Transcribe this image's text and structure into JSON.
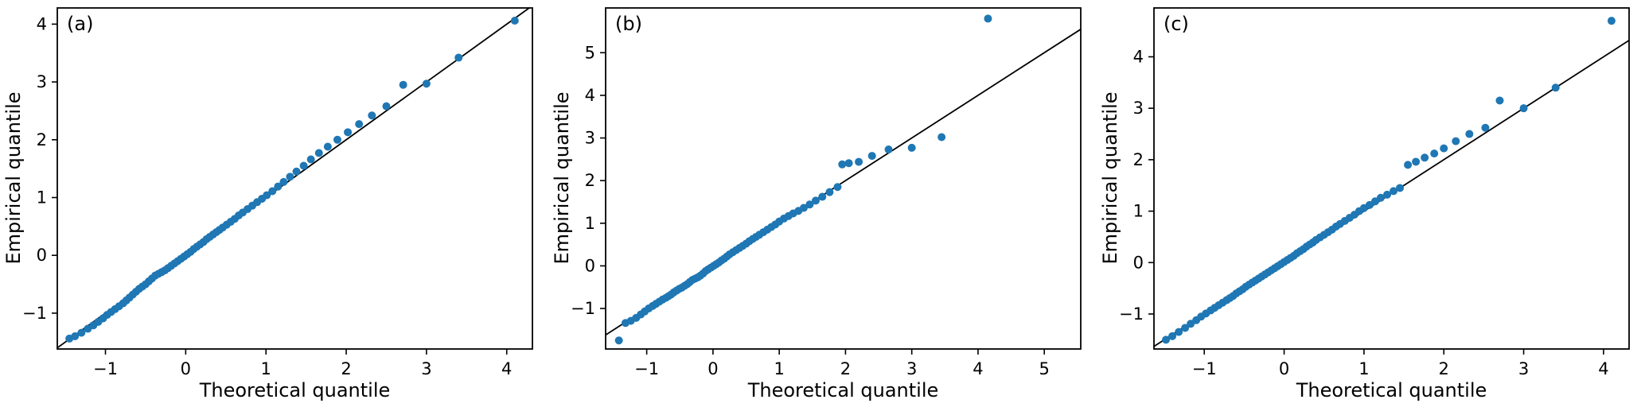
{
  "figure": {
    "background": "#ffffff",
    "marker_color": "#1f77b4",
    "line_color": "#000000"
  },
  "chart_data": [
    {
      "type": "scatter",
      "panel_label": "(a)",
      "xlabel": "Theoretical quantile",
      "ylabel": "Empirical quantile",
      "xlim": [
        -1.6,
        4.32
      ],
      "ylim": [
        -1.62,
        4.28
      ],
      "x_ticks": [
        -1,
        0,
        1,
        2,
        3,
        4
      ],
      "y_ticks": [
        -1,
        0,
        1,
        2,
        3,
        4
      ],
      "grid": false,
      "reference_line": "y=x",
      "marker_color": "#1f77b4",
      "line_color": "#000000",
      "points": [
        [
          -1.45,
          -1.44
        ],
        [
          -1.38,
          -1.4
        ],
        [
          -1.3,
          -1.34
        ],
        [
          -1.22,
          -1.27
        ],
        [
          -1.15,
          -1.21
        ],
        [
          -1.09,
          -1.15
        ],
        [
          -1.03,
          -1.09
        ],
        [
          -0.98,
          -1.03
        ],
        [
          -0.93,
          -0.98
        ],
        [
          -0.88,
          -0.93
        ],
        [
          -0.83,
          -0.88
        ],
        [
          -0.78,
          -0.83
        ],
        [
          -0.74,
          -0.78
        ],
        [
          -0.7,
          -0.73
        ],
        [
          -0.66,
          -0.68
        ],
        [
          -0.62,
          -0.63
        ],
        [
          -0.58,
          -0.58
        ],
        [
          -0.54,
          -0.54
        ],
        [
          -0.5,
          -0.5
        ],
        [
          -0.46,
          -0.45
        ],
        [
          -0.42,
          -0.4
        ],
        [
          -0.38,
          -0.35
        ],
        [
          -0.34,
          -0.32
        ],
        [
          -0.3,
          -0.29
        ],
        [
          -0.26,
          -0.26
        ],
        [
          -0.22,
          -0.22
        ],
        [
          -0.18,
          -0.18
        ],
        [
          -0.14,
          -0.14
        ],
        [
          -0.1,
          -0.1
        ],
        [
          -0.06,
          -0.06
        ],
        [
          -0.02,
          -0.02
        ],
        [
          0.02,
          0.02
        ],
        [
          0.06,
          0.06
        ],
        [
          0.1,
          0.11
        ],
        [
          0.14,
          0.15
        ],
        [
          0.18,
          0.19
        ],
        [
          0.22,
          0.23
        ],
        [
          0.26,
          0.28
        ],
        [
          0.3,
          0.32
        ],
        [
          0.34,
          0.36
        ],
        [
          0.38,
          0.4
        ],
        [
          0.42,
          0.44
        ],
        [
          0.46,
          0.48
        ],
        [
          0.51,
          0.53
        ],
        [
          0.56,
          0.58
        ],
        [
          0.61,
          0.63
        ],
        [
          0.66,
          0.69
        ],
        [
          0.71,
          0.74
        ],
        [
          0.77,
          0.8
        ],
        [
          0.83,
          0.86
        ],
        [
          0.89,
          0.92
        ],
        [
          0.95,
          0.98
        ],
        [
          1.01,
          1.04
        ],
        [
          1.08,
          1.11
        ],
        [
          1.15,
          1.19
        ],
        [
          1.22,
          1.27
        ],
        [
          1.3,
          1.36
        ],
        [
          1.38,
          1.45
        ],
        [
          1.47,
          1.55
        ],
        [
          1.56,
          1.66
        ],
        [
          1.66,
          1.77
        ],
        [
          1.77,
          1.88
        ],
        [
          1.89,
          2.0
        ],
        [
          2.02,
          2.13
        ],
        [
          2.16,
          2.27
        ],
        [
          2.32,
          2.42
        ],
        [
          2.5,
          2.58
        ],
        [
          2.71,
          2.95
        ],
        [
          3.0,
          2.97
        ],
        [
          3.4,
          3.42
        ],
        [
          4.1,
          4.06
        ]
      ]
    },
    {
      "type": "scatter",
      "panel_label": "(b)",
      "xlabel": "Theoretical quantile",
      "ylabel": "Empirical quantile",
      "xlim": [
        -1.62,
        5.55
      ],
      "ylim": [
        -1.95,
        6.05
      ],
      "x_ticks": [
        -1,
        0,
        1,
        2,
        3,
        4,
        5
      ],
      "y_ticks": [
        -1,
        0,
        1,
        2,
        3,
        4,
        5
      ],
      "grid": false,
      "reference_line": "y=x",
      "marker_color": "#1f77b4",
      "line_color": "#000000",
      "points": [
        [
          -1.42,
          -1.75
        ],
        [
          -1.32,
          -1.34
        ],
        [
          -1.24,
          -1.29
        ],
        [
          -1.16,
          -1.22
        ],
        [
          -1.09,
          -1.14
        ],
        [
          -1.03,
          -1.07
        ],
        [
          -0.97,
          -1.0
        ],
        [
          -0.91,
          -0.94
        ],
        [
          -0.86,
          -0.89
        ],
        [
          -0.81,
          -0.84
        ],
        [
          -0.76,
          -0.79
        ],
        [
          -0.71,
          -0.75
        ],
        [
          -0.67,
          -0.71
        ],
        [
          -0.63,
          -0.67
        ],
        [
          -0.59,
          -0.62
        ],
        [
          -0.55,
          -0.58
        ],
        [
          -0.51,
          -0.54
        ],
        [
          -0.47,
          -0.51
        ],
        [
          -0.43,
          -0.47
        ],
        [
          -0.39,
          -0.43
        ],
        [
          -0.35,
          -0.38
        ],
        [
          -0.31,
          -0.33
        ],
        [
          -0.27,
          -0.3
        ],
        [
          -0.23,
          -0.27
        ],
        [
          -0.19,
          -0.23
        ],
        [
          -0.15,
          -0.18
        ],
        [
          -0.11,
          -0.12
        ],
        [
          -0.07,
          -0.08
        ],
        [
          -0.03,
          -0.04
        ],
        [
          0.01,
          0.0
        ],
        [
          0.05,
          0.04
        ],
        [
          0.09,
          0.08
        ],
        [
          0.13,
          0.13
        ],
        [
          0.17,
          0.17
        ],
        [
          0.21,
          0.22
        ],
        [
          0.25,
          0.27
        ],
        [
          0.3,
          0.32
        ],
        [
          0.35,
          0.37
        ],
        [
          0.4,
          0.42
        ],
        [
          0.45,
          0.47
        ],
        [
          0.5,
          0.52
        ],
        [
          0.55,
          0.58
        ],
        [
          0.6,
          0.63
        ],
        [
          0.65,
          0.68
        ],
        [
          0.7,
          0.73
        ],
        [
          0.76,
          0.79
        ],
        [
          0.82,
          0.85
        ],
        [
          0.88,
          0.91
        ],
        [
          0.94,
          0.97
        ],
        [
          1.0,
          1.04
        ],
        [
          1.07,
          1.11
        ],
        [
          1.14,
          1.17
        ],
        [
          1.21,
          1.23
        ],
        [
          1.29,
          1.29
        ],
        [
          1.37,
          1.36
        ],
        [
          1.46,
          1.44
        ],
        [
          1.55,
          1.53
        ],
        [
          1.65,
          1.62
        ],
        [
          1.76,
          1.73
        ],
        [
          1.88,
          1.85
        ],
        [
          1.95,
          2.38
        ],
        [
          2.05,
          2.41
        ],
        [
          2.2,
          2.44
        ],
        [
          2.4,
          2.58
        ],
        [
          2.65,
          2.73
        ],
        [
          3.0,
          2.77
        ],
        [
          3.45,
          3.02
        ],
        [
          4.15,
          5.8
        ]
      ]
    },
    {
      "type": "scatter",
      "panel_label": "(c)",
      "xlabel": "Theoretical quantile",
      "ylabel": "Empirical quantile",
      "xlim": [
        -1.63,
        4.32
      ],
      "ylim": [
        -1.68,
        4.95
      ],
      "x_ticks": [
        -1,
        0,
        1,
        2,
        3,
        4
      ],
      "y_ticks": [
        -1,
        0,
        1,
        2,
        3,
        4
      ],
      "grid": false,
      "reference_line": "y=x",
      "marker_color": "#1f77b4",
      "line_color": "#000000",
      "points": [
        [
          -1.48,
          -1.5
        ],
        [
          -1.4,
          -1.43
        ],
        [
          -1.32,
          -1.35
        ],
        [
          -1.24,
          -1.27
        ],
        [
          -1.17,
          -1.19
        ],
        [
          -1.1,
          -1.12
        ],
        [
          -1.04,
          -1.05
        ],
        [
          -0.98,
          -0.99
        ],
        [
          -0.92,
          -0.93
        ],
        [
          -0.87,
          -0.88
        ],
        [
          -0.82,
          -0.83
        ],
        [
          -0.77,
          -0.78
        ],
        [
          -0.72,
          -0.73
        ],
        [
          -0.68,
          -0.69
        ],
        [
          -0.64,
          -0.65
        ],
        [
          -0.6,
          -0.6
        ],
        [
          -0.56,
          -0.56
        ],
        [
          -0.52,
          -0.52
        ],
        [
          -0.48,
          -0.47
        ],
        [
          -0.44,
          -0.43
        ],
        [
          -0.4,
          -0.39
        ],
        [
          -0.36,
          -0.35
        ],
        [
          -0.32,
          -0.31
        ],
        [
          -0.28,
          -0.27
        ],
        [
          -0.24,
          -0.23
        ],
        [
          -0.2,
          -0.19
        ],
        [
          -0.16,
          -0.15
        ],
        [
          -0.12,
          -0.11
        ],
        [
          -0.08,
          -0.07
        ],
        [
          -0.04,
          -0.03
        ],
        [
          0.0,
          0.01
        ],
        [
          0.04,
          0.05
        ],
        [
          0.08,
          0.09
        ],
        [
          0.12,
          0.13
        ],
        [
          0.16,
          0.18
        ],
        [
          0.2,
          0.22
        ],
        [
          0.24,
          0.26
        ],
        [
          0.28,
          0.31
        ],
        [
          0.32,
          0.35
        ],
        [
          0.36,
          0.39
        ],
        [
          0.4,
          0.44
        ],
        [
          0.45,
          0.49
        ],
        [
          0.5,
          0.54
        ],
        [
          0.55,
          0.59
        ],
        [
          0.6,
          0.64
        ],
        [
          0.65,
          0.7
        ],
        [
          0.7,
          0.75
        ],
        [
          0.76,
          0.81
        ],
        [
          0.82,
          0.87
        ],
        [
          0.88,
          0.93
        ],
        [
          0.94,
          1.0
        ],
        [
          1.0,
          1.06
        ],
        [
          1.07,
          1.12
        ],
        [
          1.14,
          1.19
        ],
        [
          1.21,
          1.26
        ],
        [
          1.29,
          1.32
        ],
        [
          1.37,
          1.39
        ],
        [
          1.45,
          1.45
        ],
        [
          1.55,
          1.9
        ],
        [
          1.65,
          1.96
        ],
        [
          1.76,
          2.04
        ],
        [
          1.88,
          2.12
        ],
        [
          2.0,
          2.22
        ],
        [
          2.15,
          2.36
        ],
        [
          2.32,
          2.5
        ],
        [
          2.52,
          2.62
        ],
        [
          2.7,
          3.15
        ],
        [
          3.0,
          3.0
        ],
        [
          3.4,
          3.4
        ],
        [
          4.1,
          4.7
        ]
      ]
    }
  ]
}
